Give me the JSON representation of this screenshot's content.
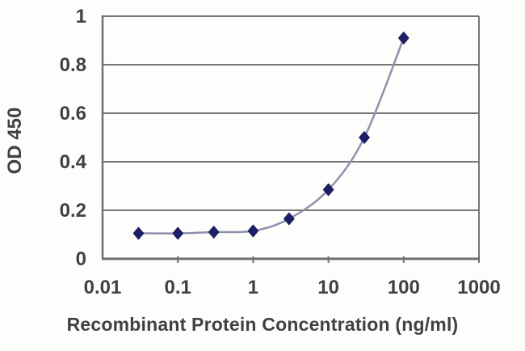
{
  "chart_data": {
    "type": "line",
    "title": "",
    "xlabel": "Recombinant Protein Concentration (ng/ml)",
    "ylabel": "OD 450",
    "xscale": "log",
    "xlim": [
      0.01,
      1000
    ],
    "ylim": [
      0,
      1
    ],
    "xticks": [
      0.01,
      0.1,
      1,
      10,
      100,
      1000
    ],
    "xtick_labels": [
      "0.01",
      "0.1",
      "1",
      "10",
      "100",
      "1000"
    ],
    "yticks": [
      0,
      0.2,
      0.4,
      0.6,
      0.8,
      1
    ],
    "ytick_labels": [
      "0",
      "0.2",
      "0.4",
      "0.6",
      "0.8",
      "1"
    ],
    "grid": "horizontal",
    "legend_position": "none",
    "series": [
      {
        "name": "OD 450",
        "x": [
          0.03,
          0.1,
          0.3,
          1,
          3,
          10,
          30,
          100
        ],
        "y": [
          0.105,
          0.105,
          0.11,
          0.115,
          0.165,
          0.285,
          0.5,
          0.91
        ],
        "marker": "diamond"
      }
    ],
    "colors": {
      "line": "#8f90ac",
      "marker": "#1c1f63",
      "grid": "#757575",
      "axis": "#6e6e6e",
      "text": "#414141",
      "background": "#fdfdfc"
    }
  }
}
